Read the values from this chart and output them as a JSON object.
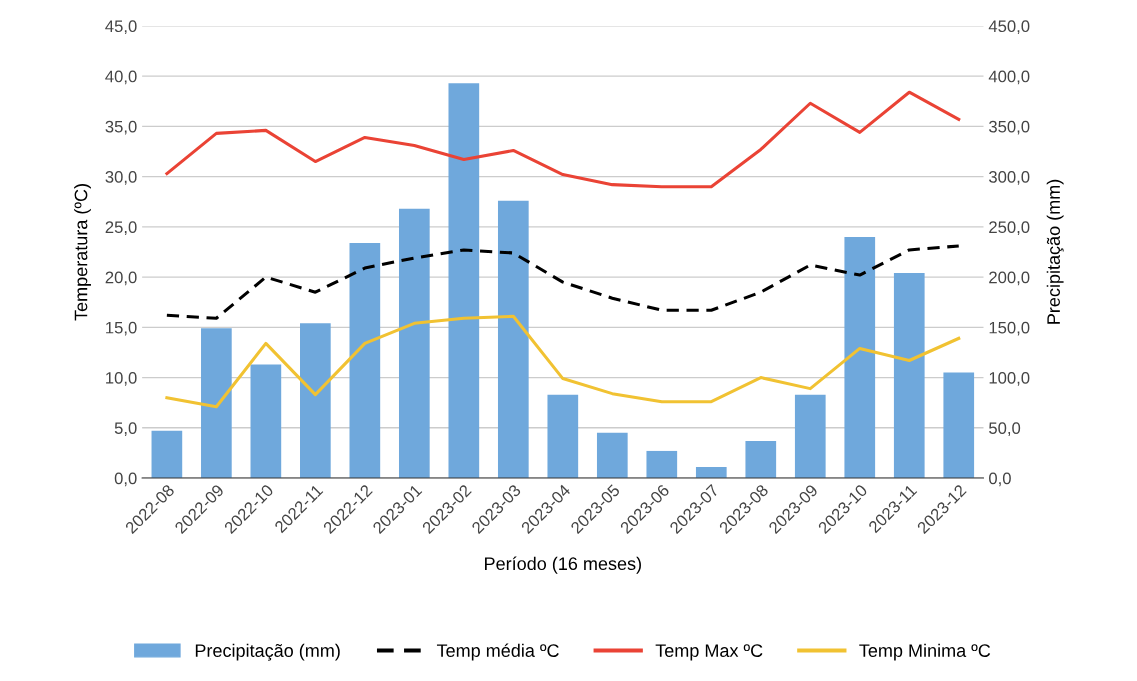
{
  "chart_data": {
    "type": "line",
    "xlabel": "Período (16 meses)",
    "ylabel": "Temperatura (ºC)",
    "y2label": "Precipitação (mm)",
    "categories": [
      "2022-08",
      "2022-09",
      "2022-10",
      "2022-11",
      "2022-12",
      "2023-01",
      "2023-02",
      "2023-03",
      "2023-04",
      "2023-05",
      "2023-06",
      "2023-07",
      "2023-08",
      "2023-09",
      "2023-10",
      "2023-11",
      "2023-12"
    ],
    "series": [
      {
        "name": "Precipitação (mm)",
        "type": "bar",
        "axis": "y2",
        "color": "#6fa8dc",
        "values": [
          47,
          149,
          113,
          154,
          234,
          268,
          393,
          276,
          83,
          45,
          27,
          11,
          37,
          83,
          240,
          204,
          105
        ]
      },
      {
        "name": "Temp média ºC",
        "line_style": "dashed",
        "color": "#000000",
        "values": [
          16.2,
          15.9,
          20.0,
          18.5,
          20.9,
          21.9,
          22.7,
          22.4,
          19.5,
          17.9,
          16.7,
          16.7,
          18.5,
          21.2,
          20.2,
          22.7,
          23.1
        ]
      },
      {
        "name": "Temp Max ºC",
        "line_style": "solid",
        "color": "#ea4335",
        "values": [
          30.3,
          34.3,
          34.6,
          31.5,
          33.9,
          33.1,
          31.7,
          32.6,
          30.2,
          29.2,
          29.0,
          29.0,
          32.7,
          37.3,
          34.4,
          38.4,
          35.7
        ]
      },
      {
        "name": "Temp Minima ºC",
        "line_style": "solid",
        "color": "#f1c232",
        "values": [
          8.0,
          7.1,
          13.4,
          8.3,
          13.4,
          15.4,
          15.9,
          16.1,
          9.9,
          8.4,
          7.6,
          7.6,
          10.0,
          8.9,
          12.9,
          11.7,
          13.9
        ]
      }
    ],
    "ylim": [
      0,
      45
    ],
    "yticks": [
      {
        "value": 0,
        "label": "0,0"
      },
      {
        "value": 5,
        "label": "5,0"
      },
      {
        "value": 10,
        "label": "10,0"
      },
      {
        "value": 15,
        "label": "15,0"
      },
      {
        "value": 20,
        "label": "20,0"
      },
      {
        "value": 25,
        "label": "25,0"
      },
      {
        "value": 30,
        "label": "30,0"
      },
      {
        "value": 35,
        "label": "35,0"
      },
      {
        "value": 40,
        "label": "40,0"
      },
      {
        "value": 45,
        "label": "45,0"
      }
    ],
    "y2lim": [
      0,
      450
    ],
    "y2ticks": [
      {
        "value": 0,
        "label": "0,0"
      },
      {
        "value": 50,
        "label": "50,0"
      },
      {
        "value": 100,
        "label": "100,0"
      },
      {
        "value": 150,
        "label": "150,0"
      },
      {
        "value": 200,
        "label": "200,0"
      },
      {
        "value": 250,
        "label": "250,0"
      },
      {
        "value": 300,
        "label": "300,0"
      },
      {
        "value": 350,
        "label": "350,0"
      },
      {
        "value": 400,
        "label": "400,0"
      },
      {
        "value": 450,
        "label": "450,0"
      }
    ],
    "grid": "y",
    "legend": "bottom"
  }
}
